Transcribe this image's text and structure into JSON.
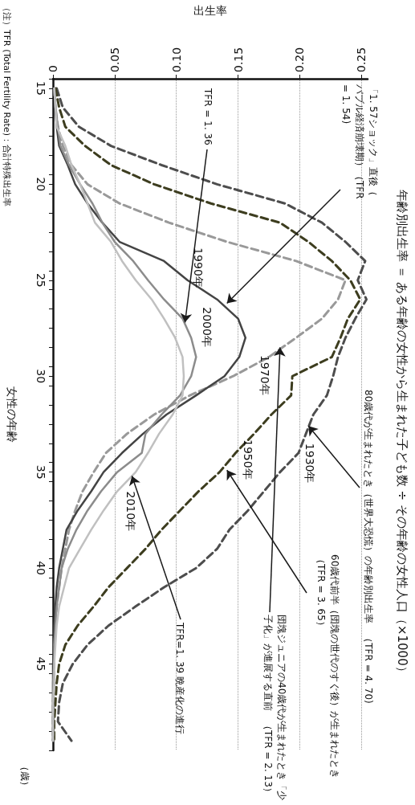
{
  "chart_data": {
    "type": "line",
    "title": "年齢別出生率 ＝ ある年齢の女性から生まれた子ども数 ÷ その年齢の女性人口（×1000）",
    "xlabel": "出生率",
    "ylabel": "女性の年齢",
    "series": [
      {
        "name": "1930年",
        "color": "#4d4d4d",
        "line_style": "dashed",
        "x": [
          0.003,
          0.008,
          0.021,
          0.047,
          0.088,
          0.133,
          0.188,
          0.218,
          0.237,
          0.253,
          0.247,
          0.254,
          0.245,
          0.237,
          0.231,
          0.227,
          0.222,
          0.211,
          0.205,
          0.199,
          0.184,
          0.171,
          0.158,
          0.143,
          0.133,
          0.116,
          0.09,
          0.067,
          0.045,
          0.028,
          0.016,
          0.008,
          0.005,
          0.004,
          0.015
        ],
        "values": [
          15,
          16,
          17,
          18,
          19,
          20,
          21,
          22,
          23,
          24,
          25,
          26,
          27,
          28,
          29,
          30,
          31,
          32,
          33,
          34,
          35,
          36,
          37,
          38,
          39,
          40,
          41,
          42,
          43,
          44,
          45,
          46,
          47,
          48,
          49
        ]
      },
      {
        "name": "1950年",
        "color": "#3d3d1f",
        "line_style": "dashed",
        "x": [
          0.002,
          0.005,
          0.01,
          0.026,
          0.047,
          0.082,
          0.128,
          0.184,
          0.207,
          0.226,
          0.241,
          0.249,
          0.239,
          0.233,
          0.226,
          0.194,
          0.193,
          0.177,
          0.163,
          0.148,
          0.135,
          0.118,
          0.103,
          0.088,
          0.075,
          0.06,
          0.045,
          0.033,
          0.02,
          0.01,
          0.005,
          0.003,
          0.002,
          0.001,
          0.001
        ],
        "values": [
          15,
          16,
          17,
          18,
          19,
          20,
          21,
          22,
          23,
          24,
          25,
          26,
          27,
          28,
          29,
          30,
          31,
          32,
          33,
          34,
          35,
          36,
          37,
          38,
          39,
          40,
          41,
          42,
          43,
          44,
          45,
          46,
          47,
          48,
          49
        ]
      },
      {
        "name": "1970年",
        "color": "#999999",
        "line_style": "dashed",
        "x": [
          0.001,
          0.002,
          0.004,
          0.008,
          0.015,
          0.028,
          0.054,
          0.094,
          0.141,
          0.197,
          0.237,
          0.231,
          0.218,
          0.197,
          0.175,
          0.146,
          0.111,
          0.082,
          0.06,
          0.043,
          0.033,
          0.024,
          0.018,
          0.013,
          0.01,
          0.007,
          0.005,
          0.003,
          0.002,
          0.001,
          0.001,
          0.001,
          0,
          0,
          0
        ],
        "values": [
          15,
          16,
          17,
          18,
          19,
          20,
          21,
          22,
          23,
          24,
          25,
          26,
          27,
          28,
          29,
          30,
          31,
          32,
          33,
          34,
          35,
          36,
          37,
          38,
          39,
          40,
          41,
          42,
          43,
          44,
          45,
          46,
          47,
          48,
          49
        ]
      },
      {
        "name": "1990年",
        "color": "#444444",
        "line_style": "solid",
        "x": [
          0.001,
          0.002,
          0.003,
          0.005,
          0.012,
          0.018,
          0.028,
          0.04,
          0.054,
          0.09,
          0.109,
          0.133,
          0.15,
          0.156,
          0.151,
          0.139,
          0.116,
          0.092,
          0.073,
          0.056,
          0.041,
          0.031,
          0.02,
          0.011,
          0.008,
          0.005,
          0.003,
          0.002,
          0.001,
          0.001,
          0,
          0,
          0,
          0,
          0
        ],
        "values": [
          15,
          16,
          17,
          18,
          19,
          20,
          21,
          22,
          23,
          24,
          25,
          26,
          27,
          28,
          29,
          30,
          31,
          32,
          33,
          34,
          35,
          36,
          37,
          38,
          39,
          40,
          41,
          42,
          43,
          44,
          45,
          46,
          47,
          48,
          49
        ]
      },
      {
        "name": "2000年",
        "color": "#8c8c8c",
        "line_style": "solid",
        "x": [
          0.001,
          0.002,
          0.004,
          0.006,
          0.013,
          0.022,
          0.032,
          0.04,
          0.05,
          0.065,
          0.077,
          0.09,
          0.105,
          0.112,
          0.116,
          0.112,
          0.103,
          0.088,
          0.075,
          0.072,
          0.052,
          0.039,
          0.028,
          0.019,
          0.012,
          0.007,
          0.005,
          0.003,
          0.002,
          0.001,
          0.001,
          0,
          0,
          0,
          0
        ],
        "values": [
          15,
          16,
          17,
          18,
          19,
          20,
          21,
          22,
          23,
          24,
          25,
          26,
          27,
          28,
          29,
          30,
          31,
          32,
          33,
          34,
          35,
          36,
          37,
          38,
          39,
          40,
          41,
          42,
          43,
          44,
          45,
          46,
          47,
          48,
          49
        ]
      },
      {
        "name": "2010年",
        "color": "#c0c0c0",
        "line_style": "solid",
        "x": [
          0.001,
          0.002,
          0.003,
          0.01,
          0.015,
          0.022,
          0.028,
          0.034,
          0.047,
          0.056,
          0.067,
          0.08,
          0.09,
          0.099,
          0.105,
          0.106,
          0.105,
          0.097,
          0.086,
          0.077,
          0.067,
          0.052,
          0.041,
          0.031,
          0.022,
          0.013,
          0.009,
          0.005,
          0.003,
          0.002,
          0.001,
          0.001,
          0,
          0,
          0
        ],
        "values": [
          15,
          16,
          17,
          18,
          19,
          20,
          21,
          22,
          23,
          24,
          25,
          26,
          27,
          28,
          29,
          30,
          31,
          32,
          33,
          34,
          35,
          36,
          37,
          38,
          39,
          40,
          41,
          42,
          43,
          44,
          45,
          46,
          47,
          48,
          49
        ]
      }
    ],
    "xlim": [
      0,
      0.255
    ],
    "xticks": [
      0,
      0.05,
      {
        "value": 0.1,
        "label": "0.10"
      },
      0.15,
      {
        "value": 0.2,
        "label": "0.20"
      },
      0.25
    ],
    "ylim": [
      49.5,
      14.5
    ],
    "yticks": [
      15,
      20,
      25,
      30,
      35,
      40,
      45,
      {
        "value": 14.5,
        "label": null
      },
      {
        "value": 15.5,
        "label": null
      },
      {
        "value": 16.5,
        "label": null
      },
      {
        "value": 17.5,
        "label": null
      },
      {
        "value": 18.5,
        "label": null
      },
      {
        "value": 19.5,
        "label": null
      },
      {
        "value": 20.5,
        "label": null
      },
      {
        "value": 21.5,
        "label": null
      },
      {
        "value": 22.5,
        "label": null
      },
      {
        "value": 23.5,
        "label": null
      },
      {
        "value": 24.5,
        "label": null
      },
      {
        "value": 25.5,
        "label": null
      },
      {
        "value": 26.5,
        "label": null
      },
      {
        "value": 27.5,
        "label": null
      },
      {
        "value": 28.5,
        "label": null
      },
      {
        "value": 29.5,
        "label": null
      },
      {
        "value": 30.5,
        "label": null
      },
      {
        "value": 31.5,
        "label": null
      },
      {
        "value": 32.5,
        "label": null
      },
      {
        "value": 33.5,
        "label": null
      },
      {
        "value": 34.5,
        "label": null
      },
      {
        "value": 35.5,
        "label": null
      },
      {
        "value": 36.5,
        "label": null
      },
      {
        "value": 37.5,
        "label": null
      },
      {
        "value": 38.5,
        "label": null
      },
      {
        "value": 39.5,
        "label": null
      },
      {
        "value": 40.5,
        "label": null
      },
      {
        "value": 41.5,
        "label": null
      },
      {
        "value": 42.5,
        "label": null
      },
      {
        "value": 43.5,
        "label": null
      },
      {
        "value": 44.5,
        "label": null
      },
      {
        "value": 45.5,
        "label": null
      },
      {
        "value": 46.5,
        "label": null
      },
      {
        "value": 47.5,
        "label": null
      },
      {
        "value": 48.5,
        "label": null
      },
      {
        "value": 49.5,
        "label": null
      }
    ],
    "grid": "x",
    "legend": false,
    "annotations": [
      {
        "text": "「1. 57ショック」直後（バブル経済崩壊期）（TFR = 1. 54)",
        "x": 0.141,
        "y": 26.2
      },
      {
        "text": "TFR = 1. 36",
        "x": 0.107,
        "y": 27.2
      },
      {
        "text": "80歳代が生まれたとき（世界大恐慌）の年齢別出生率　（TFR = 4. 70)",
        "x": 0.207,
        "y": 32.6
      },
      {
        "text": "60歳代前半（団塊の世代のすぐ後）が生まれたとき（TFR = 3. 65）",
        "x": 0.141,
        "y": 34.9
      },
      {
        "text": "団塊ジュニアの40歳代が生まれたとき「少子化」が進展する直前　（TFR = 2. 13）",
        "x": 0.184,
        "y": 28.5
      },
      {
        "text": "TFR=1. 39 晩産化の進行",
        "x": 0.064,
        "y": 35.2
      },
      "（歳）",
      "（注）TFR (Total Fertility Rate)：合計特殊出生率"
    ]
  }
}
